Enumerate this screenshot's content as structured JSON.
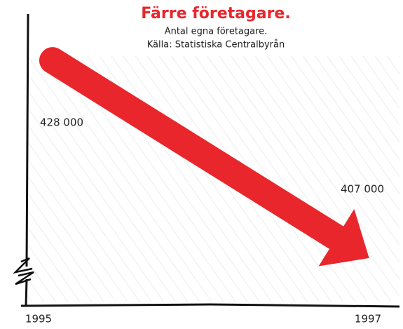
{
  "chart_data": {
    "type": "line",
    "title": "Färre företagare.",
    "subtitle": "Antal egna företagare.",
    "source": "Källa: Statistiska Centralbyrån",
    "categories": [
      "1995",
      "1997"
    ],
    "series": [
      {
        "color": "#e8262b",
        "values": [
          428000,
          407000
        ],
        "value_labels": [
          "428 000",
          "407 000"
        ]
      }
    ],
    "ylim": [
      399000,
      433500
    ]
  }
}
